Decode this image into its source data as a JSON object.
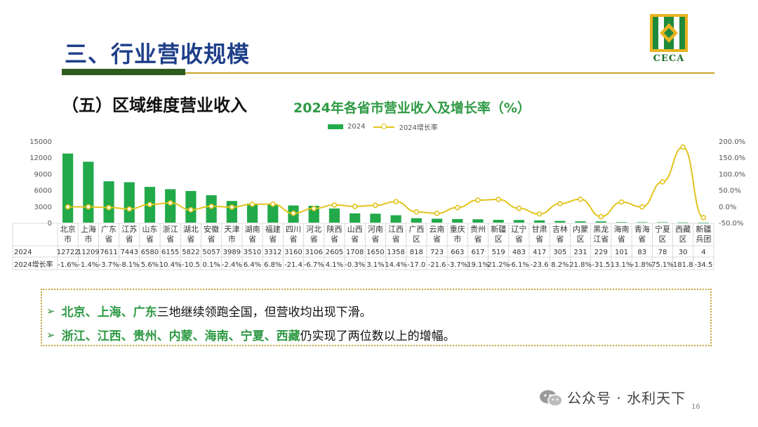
{
  "header": {
    "title": "三、行业营收规模",
    "logo_text": "CECA"
  },
  "section": {
    "subtitle": "（五）区域维度营业收入"
  },
  "chart_data": {
    "type": "bar",
    "title": "2024年各省市营业收入及增长率（%）",
    "categories": [
      "北京市",
      "上海市",
      "广东省",
      "江苏省",
      "山东省",
      "浙江省",
      "湖北省",
      "安徽省",
      "天津市",
      "湖南省",
      "福建省",
      "四川省",
      "河北省",
      "陕西省",
      "山西省",
      "河南省",
      "江西省",
      "广西区",
      "云南省",
      "重庆市",
      "贵州省",
      "新疆区",
      "辽宁省",
      "甘肃省",
      "吉林省",
      "内蒙区",
      "黑龙江省",
      "海南省",
      "青海省",
      "宁夏区",
      "西藏区",
      "新疆兵团"
    ],
    "category_lines": [
      [
        "北京",
        "市"
      ],
      [
        "上海",
        "市"
      ],
      [
        "广东",
        "省"
      ],
      [
        "江苏",
        "省"
      ],
      [
        "山东",
        "省"
      ],
      [
        "浙江",
        "省"
      ],
      [
        "湖北",
        "省"
      ],
      [
        "安徽",
        "省"
      ],
      [
        "天津",
        "市"
      ],
      [
        "湖南",
        "省"
      ],
      [
        "福建",
        "省"
      ],
      [
        "四川",
        "省"
      ],
      [
        "河北",
        "省"
      ],
      [
        "陕西",
        "省"
      ],
      [
        "山西",
        "省"
      ],
      [
        "河南",
        "省"
      ],
      [
        "江西",
        "省"
      ],
      [
        "广西",
        "区"
      ],
      [
        "云南",
        "省"
      ],
      [
        "重庆",
        "市"
      ],
      [
        "贵州",
        "省"
      ],
      [
        "新疆",
        "区"
      ],
      [
        "辽宁",
        "省"
      ],
      [
        "甘肃",
        "省"
      ],
      [
        "吉林",
        "省"
      ],
      [
        "内蒙",
        "区"
      ],
      [
        "黑龙",
        "江省"
      ],
      [
        "海南",
        "省"
      ],
      [
        "青海",
        "省"
      ],
      [
        "宁夏",
        "区"
      ],
      [
        "西藏",
        "区"
      ],
      [
        "新疆",
        "兵团"
      ]
    ],
    "series": [
      {
        "name": "2024",
        "type": "bar",
        "color": "#22a94a",
        "values": [
          12722,
          11209,
          7611,
          7443,
          6580,
          6155,
          5822,
          5057,
          3989,
          3510,
          3312,
          3160,
          3106,
          2605,
          1708,
          1650,
          1358,
          818,
          723,
          663,
          617,
          519,
          483,
          417,
          305,
          231,
          229,
          101,
          83,
          78,
          30,
          4
        ]
      },
      {
        "name": "2024增长率",
        "type": "line",
        "axis": "right",
        "color": "#e2c31c",
        "values": [
          -1.6,
          -1.4,
          -3.7,
          -8.1,
          5.6,
          10.4,
          -10.5,
          0.1,
          -2.4,
          6.4,
          6.8,
          -21.4,
          -6.7,
          4.1,
          -0.3,
          3.1,
          14.4,
          -17.0,
          -21.6,
          -3.7,
          19.1,
          21.2,
          -6.1,
          -23.6,
          8.2,
          21.8,
          -31.5,
          13.1,
          -1.8,
          75.1,
          181.8,
          -34.5
        ]
      }
    ],
    "table_rows": [
      {
        "label": "2024",
        "cells": [
          "12722",
          "11209",
          "7611",
          "7443",
          "6580",
          "6155",
          "5822",
          "5057",
          "3989",
          "3510",
          "3312",
          "3160",
          "3106",
          "2605",
          "1708",
          "1650",
          "1358",
          "818",
          "723",
          "663",
          "617",
          "519",
          "483",
          "417",
          "305",
          "231",
          "229",
          "101",
          "83",
          "78",
          "30",
          "4"
        ]
      },
      {
        "label": "2024增长率",
        "cells": [
          "-1.6%",
          "-1.4%",
          "-3.7%",
          "-8.1%",
          "5.6%",
          "10.4%",
          "-10.5",
          "0.1%",
          "-2.4%",
          "6.4%",
          "6.8%",
          "-21.4",
          "-6.7%",
          "4.1%",
          "-0.3%",
          "3.1%",
          "14.4%",
          "-17.0",
          "-21.6",
          "-3.7%",
          "19.1%",
          "21.2%",
          "-6.1%",
          "-23.6",
          "8.2%",
          "21.8%",
          "-31.5",
          "13.1%",
          "-1.8%",
          "75.1%",
          "181.8",
          "-34.5"
        ]
      }
    ],
    "y_left": {
      "ticks": [
        "0",
        "3000",
        "6000",
        "9000",
        "12000",
        "15000"
      ],
      "min": 0,
      "max": 15000
    },
    "y_right": {
      "ticks": [
        "-50.0%",
        "0.0%",
        "50.0%",
        "100.0%",
        "150.0%",
        "200.0%"
      ],
      "min": -50,
      "max": 200
    },
    "legend": {
      "bar_label": "2024",
      "line_label": "2024增长率",
      "position": "top-center"
    },
    "grid": false
  },
  "notes": [
    {
      "highlight": "北京、上海、广东",
      "text": "三地继续领跑全国，但营收均出现下滑。"
    },
    {
      "highlight": "浙江、江西、贵州、内蒙、海南、宁夏、西藏",
      "text": "仍实现了两位数以上的增幅。"
    }
  ],
  "footer": {
    "watermark": "公众号 · 水利天下",
    "page_number": "16"
  },
  "colors": {
    "title_blue": "#1e3f8a",
    "accent_green": "#2f9a45",
    "bar_green": "#22a94a",
    "line_yellow": "#e2c31c",
    "border_gold": "#c7a43a"
  }
}
